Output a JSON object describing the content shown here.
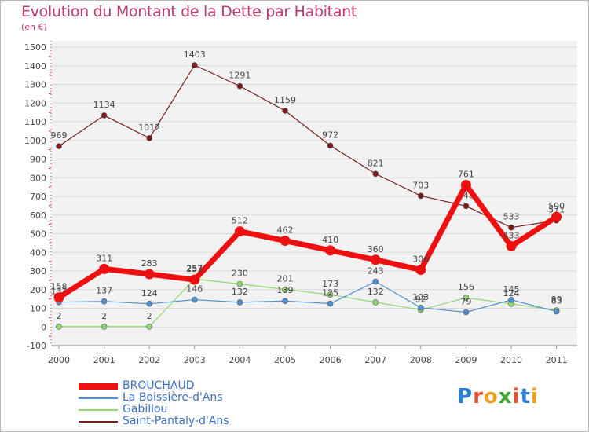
{
  "title": "Evolution du Montant de la Dette par Habitant",
  "unit": "(en €)",
  "logo": {
    "text": "Proxiti",
    "colors": [
      "#2e7fd8",
      "#e8522e",
      "#f0a020",
      "#3aaa35",
      "#e8522e",
      "#2e7fd8",
      "#f0a020"
    ]
  },
  "chart_data": {
    "type": "line",
    "title": "Evolution du Montant de la Dette par Habitant",
    "ylabel": "(en €)",
    "xlabel": "",
    "x": [
      "2000",
      "2001",
      "2002",
      "2003",
      "2004",
      "2005",
      "2006",
      "2007",
      "2008",
      "2009",
      "2010",
      "2011"
    ],
    "ylim": [
      -100,
      1500
    ],
    "yticks": [
      -100,
      0,
      100,
      200,
      300,
      400,
      500,
      600,
      700,
      800,
      900,
      1000,
      1100,
      1200,
      1300,
      1400,
      1500
    ],
    "grid": "horizontal",
    "legend_position": "bottom-left",
    "series": [
      {
        "name": "Saint-Pantaly-d'Ans",
        "color": "#7a1a1a",
        "values": [
          969,
          1134,
          1012,
          1403,
          1291,
          1159,
          972,
          821,
          703,
          648,
          533,
          571
        ],
        "labels": [
          "969",
          "1134",
          "1012",
          "1403",
          "1291",
          "1159",
          "972",
          "821",
          "703",
          "648",
          "533",
          "571"
        ]
      },
      {
        "name": "Gabillou",
        "color": "#90d870",
        "values": [
          2,
          2,
          2,
          257,
          230,
          201,
          173,
          132,
          92,
          156,
          124,
          89
        ],
        "labels": [
          "2",
          "2",
          "2",
          "257",
          "230",
          "201",
          "173",
          "132",
          "92",
          "156",
          "124",
          "89"
        ]
      },
      {
        "name": "La Boissière-d'Ans",
        "color": "#5090d0",
        "values": [
          133,
          137,
          124,
          146,
          132,
          139,
          125,
          243,
          103,
          79,
          145,
          83
        ],
        "labels": [
          "133",
          "137",
          "124",
          "146",
          "132",
          "139",
          "125",
          "243",
          "103",
          "79",
          "145",
          "83"
        ]
      },
      {
        "name": "BROUCHAUD",
        "color": "#ee1010",
        "values": [
          158,
          311,
          283,
          253,
          512,
          462,
          410,
          360,
          306,
          761,
          433,
          590
        ],
        "labels": [
          "158",
          "311",
          "283",
          "253",
          "512",
          "462",
          "410",
          "360",
          "306",
          "761",
          "433",
          "590"
        ]
      }
    ],
    "legend": [
      {
        "name": "BROUCHAUD",
        "color": "#ee1010"
      },
      {
        "name": "La Boissière-d'Ans",
        "color": "#5090d0"
      },
      {
        "name": "Gabillou",
        "color": "#90d870"
      },
      {
        "name": "Saint-Pantaly-d'Ans",
        "color": "#7a1a1a"
      }
    ]
  }
}
